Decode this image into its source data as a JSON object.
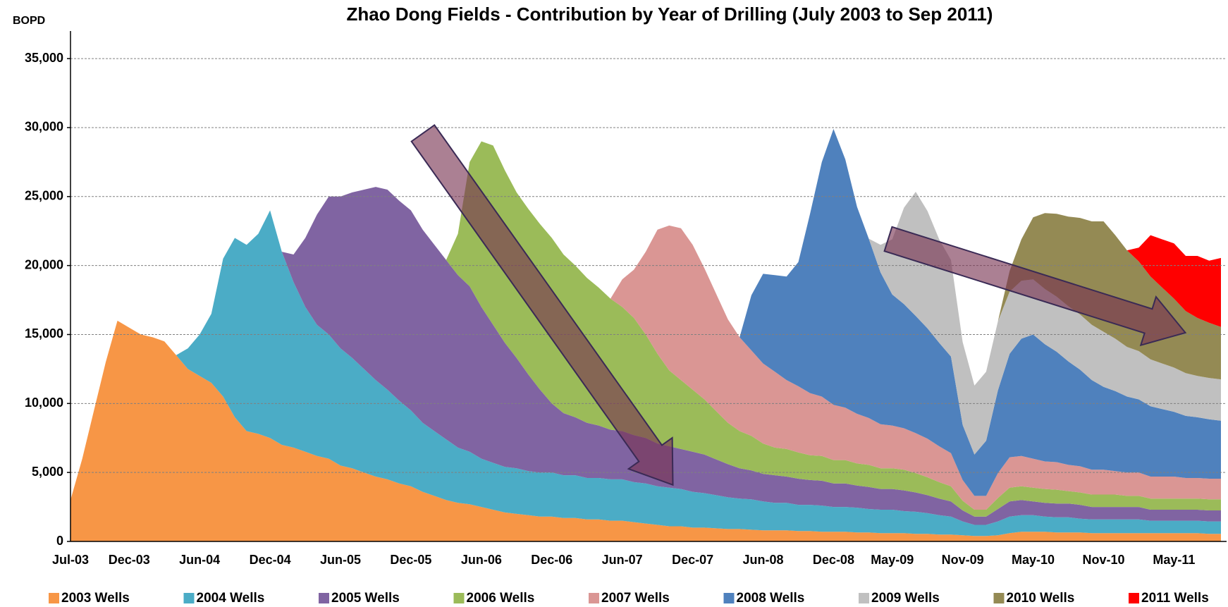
{
  "chart_data": {
    "type": "stacked_area",
    "title": "Zhao Dong Fields - Contribution by Year of Drilling (July 2003 to Sep 2011)",
    "y_label": "BOPD",
    "categories": [
      "Jul-03",
      null,
      null,
      null,
      null,
      "Dec-03",
      null,
      null,
      null,
      null,
      null,
      "Jun-04",
      null,
      null,
      null,
      null,
      null,
      "Dec-04",
      null,
      null,
      null,
      null,
      null,
      "Jun-05",
      null,
      null,
      null,
      null,
      null,
      "Dec-05",
      null,
      null,
      null,
      null,
      null,
      "Jun-06",
      null,
      null,
      null,
      null,
      null,
      "Dec-06",
      null,
      null,
      null,
      null,
      null,
      "Jun-07",
      null,
      null,
      null,
      null,
      null,
      "Dec-07",
      null,
      null,
      null,
      null,
      null,
      "Jun-08",
      null,
      null,
      null,
      null,
      null,
      "Dec-08",
      null,
      null,
      null,
      null,
      "May-09",
      null,
      null,
      null,
      null,
      null,
      "Nov-09",
      null,
      null,
      null,
      null,
      null,
      "May-10",
      null,
      null,
      null,
      null,
      null,
      "Nov-10",
      null,
      null,
      null,
      null,
      null,
      "May-11",
      null,
      null,
      null,
      null
    ],
    "series": [
      {
        "name": "2003 Wells",
        "color": "#f79646",
        "values": [
          3000,
          6000,
          9500,
          13000,
          16000,
          15500,
          15000,
          14800,
          14500,
          13500,
          12500,
          12000,
          11500,
          10500,
          9000,
          8000,
          7800,
          7500,
          7000,
          6800,
          6500,
          6200,
          6000,
          5500,
          5300,
          5000,
          4700,
          4500,
          4200,
          4000,
          3600,
          3300,
          3000,
          2800,
          2700,
          2500,
          2300,
          2100,
          2000,
          1900,
          1800,
          1800,
          1700,
          1700,
          1600,
          1600,
          1500,
          1500,
          1400,
          1300,
          1200,
          1100,
          1100,
          1000,
          1000,
          950,
          900,
          900,
          850,
          800,
          800,
          800,
          750,
          750,
          700,
          700,
          700,
          650,
          650,
          600,
          600,
          600,
          550,
          550,
          500,
          500,
          450,
          400,
          400,
          450,
          600,
          700,
          700,
          700,
          650,
          650,
          650,
          600,
          600,
          600,
          600,
          600,
          600,
          600,
          600,
          600,
          600,
          550,
          550
        ]
      },
      {
        "name": "2004 Wells",
        "color": "#4bacc6",
        "values": [
          0,
          0,
          0,
          0,
          0,
          0,
          0,
          0,
          0,
          0,
          1500,
          3000,
          5000,
          10000,
          13000,
          13500,
          14500,
          16500,
          14000,
          12000,
          10500,
          9500,
          9000,
          8500,
          8000,
          7500,
          7000,
          6500,
          6000,
          5500,
          5000,
          4700,
          4400,
          4000,
          3800,
          3500,
          3400,
          3300,
          3300,
          3200,
          3200,
          3200,
          3100,
          3100,
          3000,
          3000,
          3000,
          3000,
          2900,
          2900,
          2800,
          2800,
          2700,
          2600,
          2500,
          2400,
          2300,
          2200,
          2200,
          2100,
          2000,
          2000,
          1900,
          1900,
          1900,
          1800,
          1800,
          1800,
          1700,
          1700,
          1700,
          1600,
          1600,
          1500,
          1400,
          1300,
          1000,
          800,
          800,
          1000,
          1200,
          1200,
          1200,
          1100,
          1100,
          1100,
          1000,
          1000,
          1000,
          1000,
          1000,
          1000,
          900,
          900,
          900,
          900,
          900,
          900,
          900
        ]
      },
      {
        "name": "2005 Wells",
        "color": "#8064a2",
        "values": [
          0,
          0,
          0,
          0,
          0,
          0,
          0,
          0,
          0,
          0,
          0,
          0,
          0,
          0,
          0,
          0,
          0,
          0,
          0,
          2000,
          5000,
          8000,
          10000,
          11000,
          12000,
          13000,
          14000,
          14500,
          14500,
          14500,
          14000,
          13500,
          13000,
          12500,
          12000,
          11000,
          10000,
          9000,
          8000,
          7000,
          6000,
          5000,
          4500,
          4200,
          4000,
          3800,
          3600,
          3500,
          3400,
          3300,
          3100,
          3000,
          2900,
          2900,
          2800,
          2600,
          2400,
          2200,
          2100,
          2000,
          2000,
          1900,
          1900,
          1800,
          1800,
          1700,
          1700,
          1600,
          1600,
          1500,
          1500,
          1500,
          1400,
          1300,
          1200,
          1100,
          800,
          600,
          600,
          900,
          1100,
          1100,
          1000,
          1000,
          1000,
          1000,
          1000,
          900,
          900,
          900,
          900,
          900,
          800,
          800,
          800,
          800,
          800,
          800,
          800
        ]
      },
      {
        "name": "2006 Wells",
        "color": "#9bbb59",
        "values": [
          0,
          0,
          0,
          0,
          0,
          0,
          0,
          0,
          0,
          0,
          0,
          0,
          0,
          0,
          0,
          0,
          0,
          0,
          0,
          0,
          0,
          0,
          0,
          0,
          0,
          0,
          0,
          0,
          0,
          0,
          0,
          0,
          0,
          3000,
          9000,
          12000,
          13000,
          12500,
          12000,
          12000,
          12000,
          12000,
          11500,
          11000,
          10500,
          10000,
          9500,
          9000,
          8500,
          7500,
          6500,
          5500,
          5000,
          4500,
          4000,
          3500,
          3000,
          2700,
          2500,
          2200,
          2000,
          2000,
          1900,
          1800,
          1800,
          1700,
          1700,
          1600,
          1600,
          1500,
          1500,
          1500,
          1400,
          1300,
          1200,
          1100,
          700,
          500,
          500,
          800,
          1000,
          1000,
          1000,
          1000,
          1000,
          900,
          900,
          900,
          900,
          900,
          800,
          800,
          800,
          800,
          800,
          800,
          800,
          800,
          800
        ]
      },
      {
        "name": "2007 Wells",
        "color": "#da9694",
        "values": [
          0,
          0,
          0,
          0,
          0,
          0,
          0,
          0,
          0,
          0,
          0,
          0,
          0,
          0,
          0,
          0,
          0,
          0,
          0,
          0,
          0,
          0,
          0,
          0,
          0,
          0,
          0,
          0,
          0,
          0,
          0,
          0,
          0,
          0,
          0,
          0,
          0,
          0,
          0,
          0,
          0,
          0,
          0,
          0,
          0,
          0,
          0,
          2000,
          3500,
          6000,
          9000,
          10500,
          11000,
          10500,
          9500,
          8500,
          7500,
          6800,
          6200,
          5800,
          5500,
          5000,
          4800,
          4500,
          4300,
          4000,
          3800,
          3600,
          3400,
          3200,
          3100,
          3000,
          2900,
          2800,
          2600,
          2400,
          1500,
          1000,
          1000,
          1800,
          2200,
          2200,
          2100,
          2000,
          2000,
          1900,
          1900,
          1800,
          1800,
          1700,
          1700,
          1700,
          1600,
          1600,
          1600,
          1500,
          1500,
          1500,
          1500
        ]
      },
      {
        "name": "2008 Wells",
        "color": "#4f81bd",
        "values": [
          0,
          0,
          0,
          0,
          0,
          0,
          0,
          0,
          0,
          0,
          0,
          0,
          0,
          0,
          0,
          0,
          0,
          0,
          0,
          0,
          0,
          0,
          0,
          0,
          0,
          0,
          0,
          0,
          0,
          0,
          0,
          0,
          0,
          0,
          0,
          0,
          0,
          0,
          0,
          0,
          0,
          0,
          0,
          0,
          0,
          0,
          0,
          0,
          0,
          0,
          0,
          0,
          0,
          0,
          0,
          0,
          0,
          0,
          4000,
          6500,
          7000,
          7500,
          9000,
          13000,
          17000,
          20000,
          18000,
          15000,
          13000,
          11000,
          9500,
          9000,
          8500,
          8000,
          7500,
          7000,
          4000,
          3000,
          4000,
          6000,
          7500,
          8500,
          9000,
          8500,
          8000,
          7500,
          7000,
          6500,
          6000,
          5800,
          5500,
          5300,
          5100,
          4900,
          4700,
          4500,
          4400,
          4300,
          4200
        ]
      },
      {
        "name": "2009 Wells",
        "color": "#c0c0c0",
        "values": [
          0,
          0,
          0,
          0,
          0,
          0,
          0,
          0,
          0,
          0,
          0,
          0,
          0,
          0,
          0,
          0,
          0,
          0,
          0,
          0,
          0,
          0,
          0,
          0,
          0,
          0,
          0,
          0,
          0,
          0,
          0,
          0,
          0,
          0,
          0,
          0,
          0,
          0,
          0,
          0,
          0,
          0,
          0,
          0,
          0,
          0,
          0,
          0,
          0,
          0,
          0,
          0,
          0,
          0,
          0,
          0,
          0,
          0,
          0,
          0,
          0,
          0,
          0,
          0,
          0,
          0,
          0,
          0,
          0,
          2000,
          4000,
          7000,
          9000,
          8500,
          7500,
          7000,
          6000,
          5000,
          5000,
          5000,
          4500,
          4200,
          4000,
          4000,
          4000,
          4000,
          4000,
          4000,
          4000,
          3800,
          3600,
          3500,
          3400,
          3300,
          3200,
          3100,
          3000,
          3000,
          3000
        ]
      },
      {
        "name": "2010 Wells",
        "color": "#948a54",
        "values": [
          0,
          0,
          0,
          0,
          0,
          0,
          0,
          0,
          0,
          0,
          0,
          0,
          0,
          0,
          0,
          0,
          0,
          0,
          0,
          0,
          0,
          0,
          0,
          0,
          0,
          0,
          0,
          0,
          0,
          0,
          0,
          0,
          0,
          0,
          0,
          0,
          0,
          0,
          0,
          0,
          0,
          0,
          0,
          0,
          0,
          0,
          0,
          0,
          0,
          0,
          0,
          0,
          0,
          0,
          0,
          0,
          0,
          0,
          0,
          0,
          0,
          0,
          0,
          0,
          0,
          0,
          0,
          0,
          0,
          0,
          0,
          0,
          0,
          0,
          0,
          0,
          0,
          0,
          0,
          0,
          1500,
          3000,
          4500,
          5500,
          6000,
          6500,
          7000,
          7500,
          8000,
          7500,
          7000,
          6500,
          6000,
          5500,
          5000,
          4500,
          4200,
          4000,
          3800
        ]
      },
      {
        "name": "2011 Wells",
        "color": "#ff0000",
        "values": [
          0,
          0,
          0,
          0,
          0,
          0,
          0,
          0,
          0,
          0,
          0,
          0,
          0,
          0,
          0,
          0,
          0,
          0,
          0,
          0,
          0,
          0,
          0,
          0,
          0,
          0,
          0,
          0,
          0,
          0,
          0,
          0,
          0,
          0,
          0,
          0,
          0,
          0,
          0,
          0,
          0,
          0,
          0,
          0,
          0,
          0,
          0,
          0,
          0,
          0,
          0,
          0,
          0,
          0,
          0,
          0,
          0,
          0,
          0,
          0,
          0,
          0,
          0,
          0,
          0,
          0,
          0,
          0,
          0,
          0,
          0,
          0,
          0,
          0,
          0,
          0,
          0,
          0,
          0,
          0,
          0,
          0,
          0,
          0,
          0,
          0,
          0,
          0,
          0,
          0,
          0,
          1000,
          3000,
          3500,
          4000,
          4000,
          4500,
          4500,
          5000
        ]
      }
    ],
    "ylim": [
      0,
      37000
    ],
    "yticks": [
      0,
      {
        "value": 5000,
        "label": "5,000"
      },
      {
        "value": 10000,
        "label": "10,000"
      },
      {
        "value": 15000,
        "label": "15,000"
      },
      {
        "value": 20000,
        "label": "20,000"
      },
      {
        "value": 25000,
        "label": "25,000"
      },
      {
        "value": 30000,
        "label": "30,000"
      },
      {
        "value": 35000,
        "label": "35,000"
      }
    ],
    "grid": true,
    "legend": "bottom"
  }
}
